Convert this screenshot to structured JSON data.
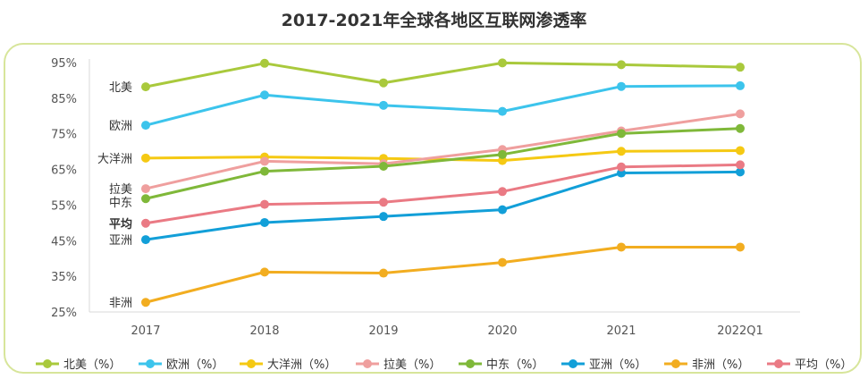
{
  "chart_data": {
    "type": "line",
    "title": "2017-2021年全球各地区互联网渗透率",
    "xlabel": "",
    "ylabel": "",
    "categories": [
      "2017",
      "2018",
      "2019",
      "2020",
      "2021",
      "2022Q1"
    ],
    "ylim": [
      25,
      95
    ],
    "yticks": [
      25,
      35,
      45,
      55,
      65,
      75,
      85,
      95
    ],
    "ytick_labels": [
      "25%",
      "35%",
      "45%",
      "55%",
      "65%",
      "75%",
      "85%",
      "95%"
    ],
    "series": [
      {
        "name": "北美（%）",
        "label": "北美",
        "color": "#a9c93c",
        "bold": false,
        "values": [
          88.2,
          94.8,
          89.3,
          94.9,
          94.4,
          93.7
        ]
      },
      {
        "name": "欧洲（%）",
        "label": "欧洲",
        "color": "#3cc4ec",
        "bold": false,
        "values": [
          77.4,
          85.9,
          83.0,
          81.3,
          88.3,
          88.5
        ]
      },
      {
        "name": "大洋洲（%）",
        "label": "大洋洲",
        "color": "#f5c913",
        "bold": false,
        "values": [
          68.2,
          68.5,
          68.1,
          67.5,
          70.1,
          70.3
        ]
      },
      {
        "name": "拉美（%）",
        "label": "拉美",
        "color": "#ef9f9e",
        "bold": false,
        "values": [
          59.6,
          67.3,
          66.6,
          70.6,
          75.8,
          80.6
        ]
      },
      {
        "name": "中东（%）",
        "label": "中东",
        "color": "#7fb839",
        "bold": false,
        "values": [
          56.8,
          64.5,
          65.9,
          69.2,
          75.1,
          76.5
        ]
      },
      {
        "name": "亚洲（%）",
        "label": "亚洲",
        "color": "#129fd8",
        "bold": false,
        "values": [
          45.3,
          50.1,
          51.8,
          53.7,
          64.0,
          64.3
        ]
      },
      {
        "name": "非洲（%）",
        "label": "非洲",
        "color": "#f2ad20",
        "bold": false,
        "values": [
          27.7,
          36.2,
          35.9,
          38.9,
          43.2,
          43.2
        ]
      },
      {
        "name": "平均（%）",
        "label": "平均",
        "color": "#ea7a84",
        "bold": true,
        "values": [
          49.9,
          55.2,
          55.8,
          58.8,
          65.7,
          66.3
        ]
      }
    ]
  }
}
